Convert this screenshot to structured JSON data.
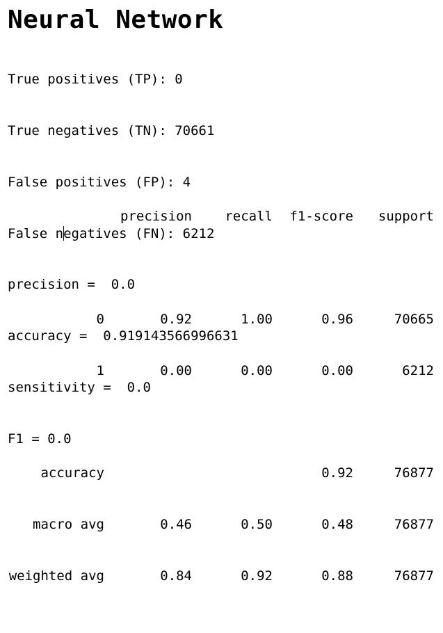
{
  "title": "Neural Network",
  "metrics": {
    "tp": "True positives (TP): 0",
    "tn": "True negatives (TN): 70661",
    "fp": "False positives (FP): 4",
    "fn_before_caret": "False n",
    "fn_after_caret": "egatives (FN): 6212",
    "precision": "precision =  0.0",
    "accuracy": "accuracy =  0.919143566996631",
    "sensitivity": "sensitivity =  0.0",
    "f1": "F1 = 0.0"
  },
  "report": {
    "headers": [
      "precision",
      "recall",
      "f1-score",
      "support"
    ],
    "rows": [
      {
        "label": "0",
        "precision": "0.92",
        "recall": "1.00",
        "f1": "0.96",
        "support": "70665"
      },
      {
        "label": "1",
        "precision": "0.00",
        "recall": "0.00",
        "f1": "0.00",
        "support": "6212"
      }
    ],
    "summary": [
      {
        "label": "accuracy",
        "precision": "",
        "recall": "",
        "f1": "0.92",
        "support": "76877"
      },
      {
        "label": "macro avg",
        "precision": "0.46",
        "recall": "0.50",
        "f1": "0.48",
        "support": "76877"
      },
      {
        "label": "weighted avg",
        "precision": "0.84",
        "recall": "0.92",
        "f1": "0.88",
        "support": "76877"
      }
    ]
  }
}
